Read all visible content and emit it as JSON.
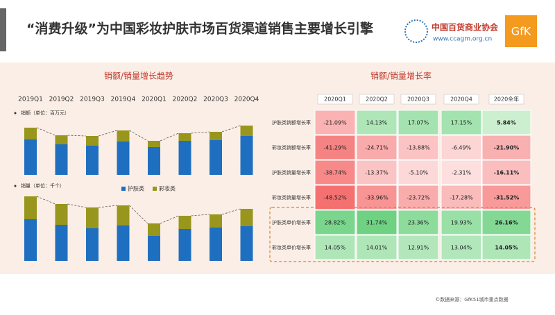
{
  "header": {
    "title": "“消费升级”为中国彩妆护肤市场百货渠道销售主要增长引擎",
    "logo_name": "中国百货商业协会",
    "logo_url": "www.ccagm.org.cn",
    "brand": "GfK"
  },
  "left_title": "销额/销量增长趋势",
  "chart_data": [
    {
      "type": "stacked-bar",
      "title": "销额（单位：百万元）",
      "categories": [
        "2019Q1",
        "2019Q2",
        "2019Q3",
        "2019Q4",
        "2020Q1",
        "2020Q2",
        "2020Q3",
        "2020Q4"
      ],
      "series": [
        {
          "color": "#1f6fc0",
          "values": [
            51,
            44,
            42,
            48,
            40,
            49,
            50,
            56
          ]
        },
        {
          "color": "#98961c",
          "values": [
            17,
            13,
            14,
            16,
            9,
            11,
            12,
            15
          ]
        }
      ]
    },
    {
      "type": "stacked-bar",
      "title": "销量（单位：千个）",
      "series": [
        {
          "name": "护肤类",
          "color": "#1f6fc0",
          "values": [
            60,
            52,
            47,
            51,
            36,
            46,
            48,
            50
          ]
        },
        {
          "name": "彩妆类",
          "color": "#98961c",
          "values": [
            33,
            30,
            30,
            29,
            18,
            19,
            19,
            25
          ]
        }
      ]
    }
  ],
  "table": {
    "title": "销额/销量增长率",
    "columns": [
      "2020Q1",
      "2020Q2",
      "2020Q3",
      "2020Q4",
      "2020全年"
    ],
    "rows": [
      [
        "护肤类销额增长率",
        "-21.09%",
        "14.13%",
        "17.07%",
        "17.15%",
        "5.84%"
      ],
      [
        "彩妆类销额增长率",
        "-41.29%",
        "-24.71%",
        "-13.88%",
        "-6.49%",
        "-21.90%"
      ],
      [
        "护肤类销量增长率",
        "-38.74%",
        "-13.37%",
        "-5.10%",
        "-2.31%",
        "-16.11%"
      ],
      [
        "彩妆类销量增长率",
        "-48.52%",
        "-33.96%",
        "-23.72%",
        "-17.28%",
        "-31.52%"
      ],
      [
        "护肤类单价增长率",
        "28.82%",
        "31.74%",
        "23.36%",
        "19.93%",
        "26.16%"
      ],
      [
        "彩妆类单价增长率",
        "14.05%",
        "14.01%",
        "12.91%",
        "13.04%",
        "14.05%"
      ]
    ]
  },
  "footer": "©数据来源：GfK51城市重点数据"
}
